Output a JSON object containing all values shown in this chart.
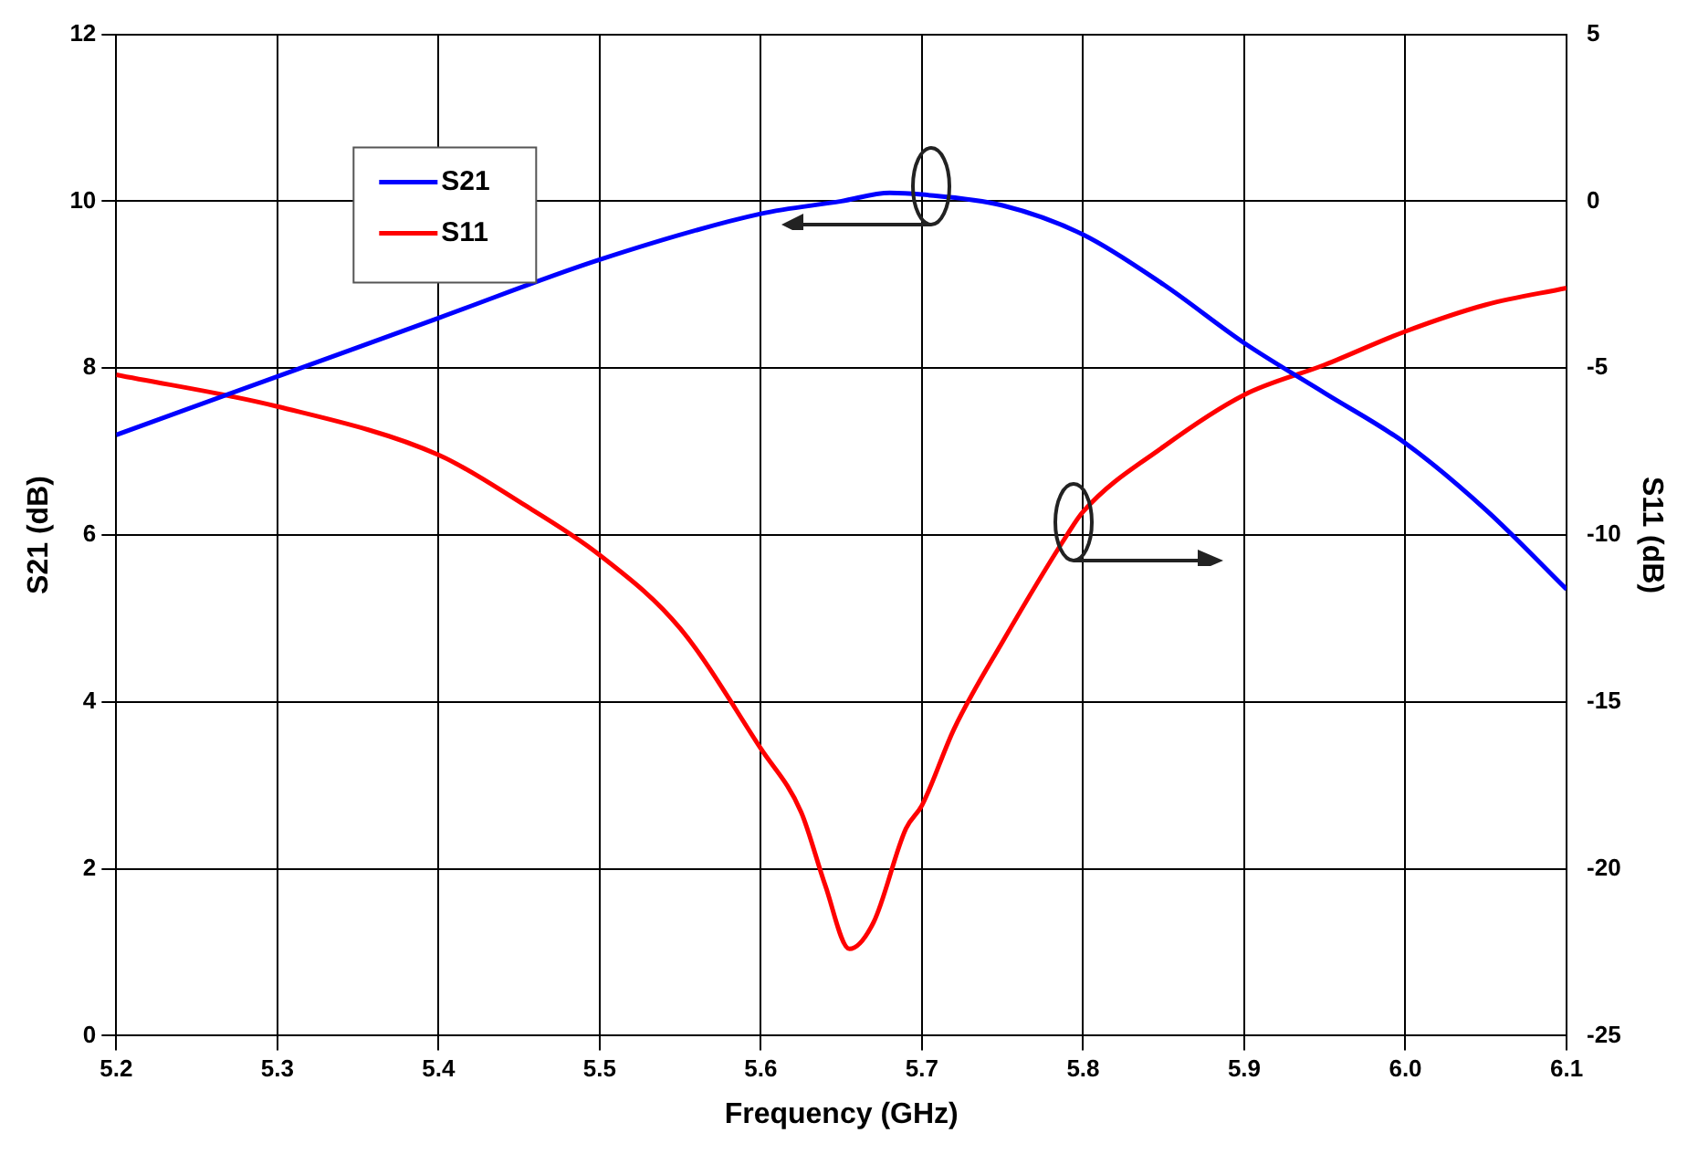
{
  "chart_data": {
    "type": "line",
    "xlabel": "Frequency (GHz)",
    "ylabel": "S21 (dB)",
    "y2label": "S11 (dB)",
    "xlim": [
      5.2,
      6.1
    ],
    "xticks": [
      5.2,
      5.3,
      5.4,
      5.5,
      5.6,
      5.7,
      5.8,
      5.9,
      {
        "value": 6,
        "label": "6.0"
      },
      6.1
    ],
    "ylim": [
      0,
      12
    ],
    "yticks": [
      0,
      2,
      4,
      6,
      8,
      10,
      12
    ],
    "y2lim": [
      -25,
      5
    ],
    "y2ticks": [
      -25,
      -20,
      -15,
      -10,
      -5,
      0,
      5
    ],
    "grid": true,
    "legend": "top left",
    "marker": "none",
    "line_style": "solid",
    "series": [
      {
        "name": "S21",
        "color": "#0000ff",
        "x": [
          5.2,
          5.3,
          5.4,
          5.5,
          5.6,
          5.65,
          5.68,
          5.7,
          5.75,
          5.8,
          5.85,
          5.9,
          5.95,
          6.0,
          6.05,
          6.1
        ],
        "values": [
          7.2,
          7.9,
          8.6,
          9.3,
          9.85,
          10.0,
          10.1,
          10.08,
          9.95,
          9.6,
          9.0,
          8.3,
          7.7,
          7.1,
          6.3,
          5.35
        ]
      },
      {
        "name": "S11",
        "color": "#ff0000",
        "axis": "y2",
        "x": [
          5.2,
          5.3,
          5.4,
          5.45,
          5.5,
          5.55,
          5.6,
          5.625,
          5.64,
          5.655,
          5.67,
          5.69,
          5.7,
          5.72,
          5.75,
          5.79,
          5.8,
          5.85,
          5.9,
          5.95,
          6.0,
          6.05,
          6.1
        ],
        "values": [
          -5.2,
          -6.15,
          -7.6,
          -9.0,
          -10.6,
          -12.8,
          -16.4,
          -18.3,
          -20.5,
          -22.4,
          -21.6,
          -18.8,
          -18.1,
          -15.8,
          -13.2,
          -10.0,
          -9.3,
          -7.35,
          -5.8,
          -4.9,
          -3.9,
          -3.1,
          -2.6
        ]
      }
    ]
  }
}
